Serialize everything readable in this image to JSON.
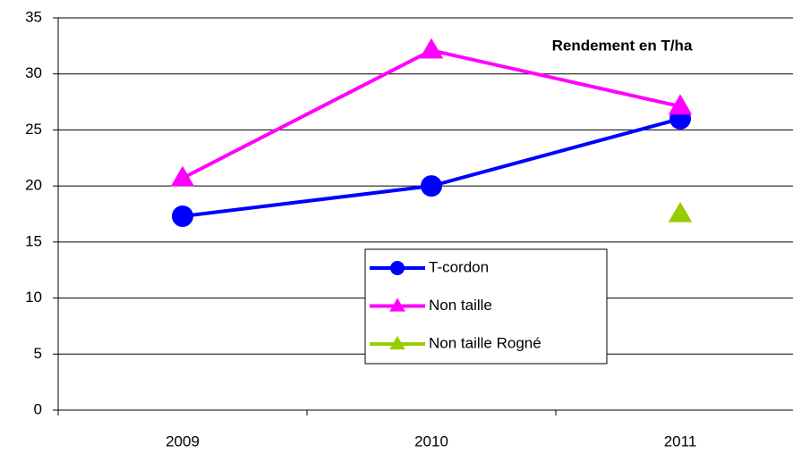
{
  "chart_data": {
    "type": "line",
    "title": "Rendement en T/ha",
    "categories": [
      "2009",
      "2010",
      "2011"
    ],
    "series": [
      {
        "name": "T-cordon",
        "color": "#0000ff",
        "marker": "circle",
        "values": [
          17.3,
          20,
          26
        ]
      },
      {
        "name": "Non taille",
        "color": "#ff00ff",
        "marker": "triangle",
        "values": [
          20.7,
          32.1,
          27.1
        ]
      },
      {
        "name": "Non taille Rogné",
        "color": "#99cc00",
        "marker": "triangle",
        "values": [
          null,
          null,
          17.5
        ]
      }
    ],
    "ylim": [
      0,
      35
    ],
    "yticks": [
      0,
      5,
      10,
      15,
      20,
      25,
      30,
      35
    ],
    "grid": true
  }
}
